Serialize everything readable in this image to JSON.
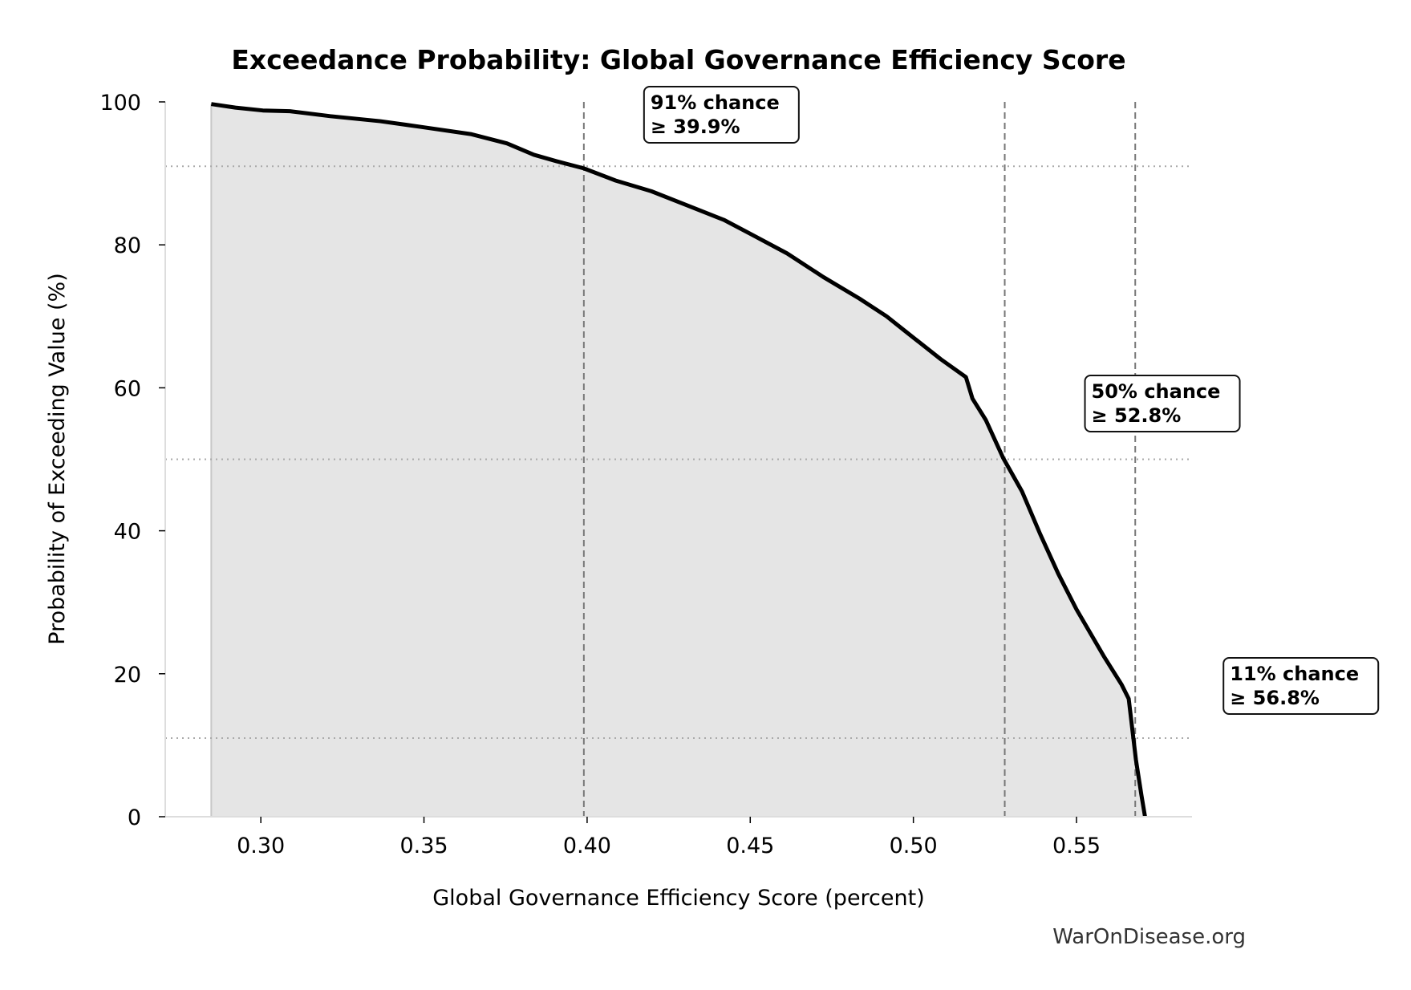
{
  "chart_data": {
    "type": "area",
    "title": "Exceedance Probability: Global Governance Efficiency Score",
    "xlabel": "Global Governance Efficiency Score (percent)",
    "ylabel": "Probability of Exceeding Value (%)",
    "xlim": [
      0.2707,
      0.5854
    ],
    "ylim": [
      0,
      100
    ],
    "xticks": [
      0.3,
      0.35,
      0.4,
      0.45,
      0.5,
      0.55
    ],
    "xtick_labels": [
      "0.30",
      "0.35",
      "0.40",
      "0.45",
      "0.50",
      "0.55"
    ],
    "yticks": [
      0,
      20,
      40,
      60,
      80,
      100
    ],
    "ytick_labels": [
      "0",
      "20",
      "40",
      "60",
      "80",
      "100"
    ],
    "grid": false,
    "line_color": "#000000",
    "fill_color": "#e5e5e5",
    "x": [
      0.2848,
      0.2922,
      0.3006,
      0.3089,
      0.3213,
      0.3366,
      0.3491,
      0.3643,
      0.3754,
      0.3837,
      0.3906,
      0.399,
      0.4087,
      0.4197,
      0.4308,
      0.4419,
      0.4502,
      0.4613,
      0.4724,
      0.4834,
      0.4918,
      0.4973,
      0.5084,
      0.5161,
      0.5181,
      0.5222,
      0.5275,
      0.5333,
      0.5389,
      0.5444,
      0.55,
      0.5583,
      0.5638,
      0.566,
      0.5682,
      0.5699,
      0.571
    ],
    "y": [
      99.7,
      99.2,
      98.8,
      98.7,
      98.0,
      97.3,
      96.5,
      95.5,
      94.2,
      92.6,
      91.7,
      90.7,
      89.0,
      87.5,
      85.5,
      83.5,
      81.5,
      78.8,
      75.5,
      72.5,
      70.0,
      68.0,
      64.0,
      61.5,
      58.5,
      55.5,
      50.2,
      45.5,
      39.5,
      34.0,
      29.0,
      22.5,
      18.5,
      16.5,
      8.0,
      3.0,
      0.0
    ],
    "annotations": [
      {
        "x": 0.399,
        "p": 91,
        "line1": "91% chance",
        "line2": "≥ 39.9%"
      },
      {
        "x": 0.528,
        "p": 50,
        "line1": "50% chance",
        "line2": "≥ 52.8%"
      },
      {
        "x": 0.568,
        "p": 11,
        "line1": "11% chance",
        "line2": "≥ 56.8%"
      }
    ],
    "watermark": "WarOnDisease.org"
  }
}
